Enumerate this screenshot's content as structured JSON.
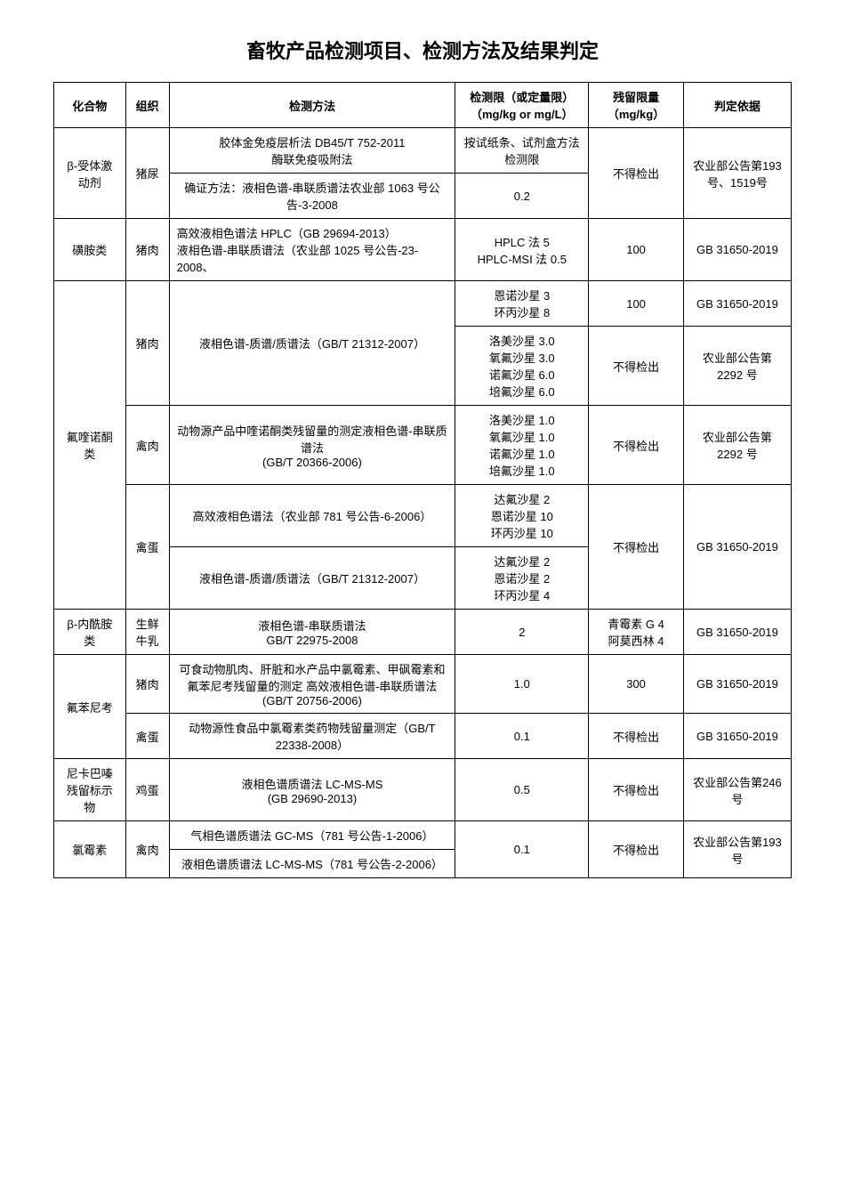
{
  "title": "畜牧产品检测项目、检测方法及结果判定",
  "headers": {
    "col1": "化合物",
    "col2": "组织",
    "col3": "检测方法",
    "col4": "检测限（或定量限）（mg/kg or mg/L）",
    "col5": "残留限量（mg/kg）",
    "col6": "判定依据"
  },
  "rows": {
    "r1": {
      "compound": "β-受体激动剂",
      "tissue": "猪尿",
      "method1": "胶体金免疫层析法 DB45/T 752-2011\n酶联免疫吸附法",
      "limit1": "按试纸条、试剂盒方法检测限",
      "method2": "确证方法：液相色谱-串联质谱法农业部 1063 号公告-3-2008",
      "limit2": "0.2",
      "residue": "不得检出",
      "basis": "农业部公告第193 号、1519号"
    },
    "r2": {
      "compound": "磺胺类",
      "tissue": "猪肉",
      "method": "高效液相色谱法 HPLC（GB 29694-2013）\n液相色谱-串联质谱法（农业部 1025 号公告-23-2008、",
      "limit": "HPLC 法 5\nHPLC-MSI 法 0.5",
      "residue": "100",
      "basis": "GB 31650-2019"
    },
    "r3": {
      "compound": "氟喹诺酮类",
      "tissue1": "猪肉",
      "method1": "液相色谱-质谱/质谱法（GB/T 21312-2007）",
      "limit1a": "恩诺沙星 3\n环丙沙星 8",
      "residue1a": "100",
      "basis1a": "GB 31650-2019",
      "limit1b": "洛美沙星 3.0\n氧氟沙星 3.0\n诺氟沙星 6.0\n培氟沙星 6.0",
      "residue1b": "不得检出",
      "basis1b": "农业部公告第2292 号",
      "tissue2": "禽肉",
      "method2": "动物源产品中喹诺酮类残留量的测定液相色谱-串联质谱法\n(GB/T 20366-2006)",
      "limit2": "洛美沙星 1.0\n氧氟沙星 1.0\n诺氟沙星 1.0\n培氟沙星 1.0",
      "residue2": "不得检出",
      "basis2": "农业部公告第2292 号",
      "tissue3": "禽蛋",
      "method3a": "高效液相色谱法（农业部 781 号公告-6-2006）",
      "limit3a": "达氟沙星 2\n恩诺沙星 10\n环丙沙星 10",
      "method3b": "液相色谱-质谱/质谱法（GB/T 21312-2007）",
      "limit3b": "达氟沙星 2\n恩诺沙星 2\n环丙沙星 4",
      "residue3": "不得检出",
      "basis3": "GB 31650-2019"
    },
    "r4": {
      "compound": "β-内酰胺类",
      "tissue": "生鲜牛乳",
      "method": "液相色谱-串联质谱法\nGB/T 22975-2008",
      "limit": "2",
      "residue": "青霉素 G 4\n阿莫西林 4",
      "basis": "GB 31650-2019"
    },
    "r5": {
      "compound": "氟苯尼考",
      "tissue1": "猪肉",
      "method1": "可食动物肌肉、肝脏和水产品中氯霉素、甲砜霉素和氟苯尼考残留量的测定 高效液相色谱-串联质谱法\n(GB/T 20756-2006)",
      "limit1": "1.0",
      "residue1": "300",
      "basis1": "GB 31650-2019",
      "tissue2": "禽蛋",
      "method2": "动物源性食品中氯霉素类药物残留量测定（GB/T 22338-2008）",
      "limit2": "0.1",
      "residue2": "不得检出",
      "basis2": "GB 31650-2019"
    },
    "r6": {
      "compound": "尼卡巴嗪残留标示物",
      "tissue": "鸡蛋",
      "method": "液相色谱质谱法 LC-MS-MS\n(GB 29690-2013)",
      "limit": "0.5",
      "residue": "不得检出",
      "basis": "农业部公告第246 号"
    },
    "r7": {
      "compound": "氯霉素",
      "tissue": "禽肉",
      "method1": "气相色谱质谱法 GC-MS（781 号公告-1-2006）",
      "limit1": "0.1",
      "method2": "液相色谱质谱法 LC-MS-MS（781 号公告-2-2006）",
      "residue": "不得检出",
      "basis": "农业部公告第193 号"
    }
  },
  "style": {
    "background": "#ffffff",
    "border_color": "#000000",
    "title_fontsize": 22,
    "cell_fontsize": 13,
    "text_color": "#000000"
  }
}
